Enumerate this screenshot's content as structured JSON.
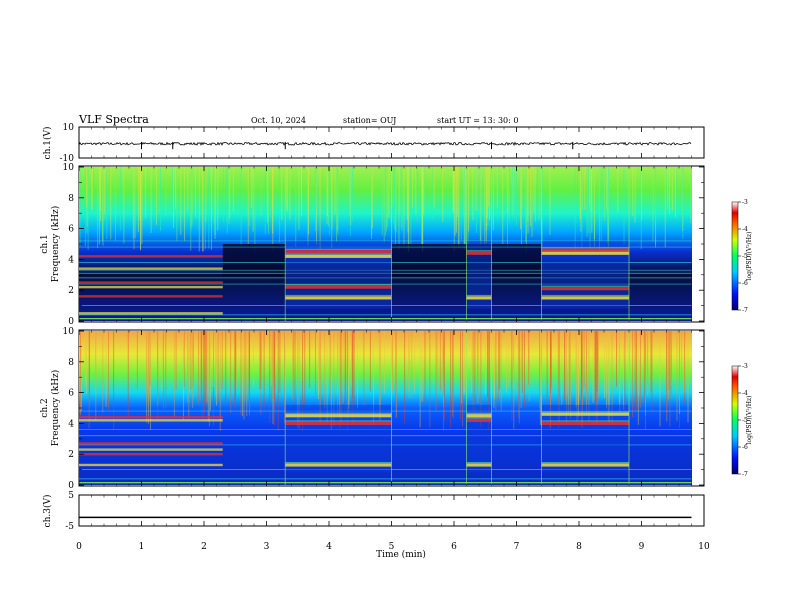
{
  "header": {
    "title": "VLF Spectra",
    "date": "Oct. 10, 2024",
    "station": "station= OUJ",
    "start": "start  UT  =  13: 30: 0"
  },
  "chart_data": [
    {
      "type": "line",
      "name": "ch1-waveform",
      "ylabel": "ch.1(V)",
      "ylim": [
        -10,
        10
      ],
      "yticks": [
        "10",
        "-10"
      ],
      "x": [
        0,
        9.8
      ],
      "baseline": -0.8,
      "spike_times": [
        1.0,
        1.5,
        3.3,
        6.6,
        7.9
      ],
      "xlim": [
        0,
        10
      ]
    },
    {
      "type": "heatmap",
      "name": "ch1-spectrogram",
      "ylabel_top": "ch.1",
      "ylabel": "Frequency (kHz)",
      "ylim": [
        0,
        10
      ],
      "yticks": [
        "0",
        "2",
        "4",
        "6",
        "8",
        "10"
      ],
      "xlim": [
        0,
        9.8
      ],
      "colorbar": {
        "label": "log(PSD)(V²/Hz)",
        "ticks": [
          "-3",
          "-4",
          "-5",
          "-6",
          "-7"
        ],
        "range": [
          -7,
          -3
        ]
      },
      "bursts": [
        {
          "t0": 3.3,
          "t1": 5.0,
          "bands": [
            1.5,
            2.2,
            4.2,
            4.5
          ]
        },
        {
          "t0": 6.2,
          "t1": 6.6,
          "bands": [
            1.5,
            4.4
          ]
        },
        {
          "t0": 7.4,
          "t1": 8.8,
          "bands": [
            1.5,
            2.1,
            4.4,
            4.6
          ]
        }
      ],
      "early_bands": {
        "t0": 0.0,
        "t1": 2.3,
        "bands": [
          0.5,
          1.6,
          2.2,
          2.5,
          3.4,
          4.2
        ]
      },
      "lines_khz": [
        0.4,
        1.0,
        2.4,
        2.8,
        3.1,
        3.3,
        3.8,
        4.8,
        5.2
      ]
    },
    {
      "type": "heatmap",
      "name": "ch2-spectrogram",
      "ylabel_top": "ch.2",
      "ylabel": "Frequency (kHz)",
      "ylim": [
        0,
        10
      ],
      "yticks": [
        "0",
        "2",
        "4",
        "6",
        "8",
        "10"
      ],
      "xlim": [
        0,
        9.8
      ],
      "colorbar": {
        "label": "log(PSD)(V²/Hz)",
        "ticks": [
          "-3",
          "-4",
          "-5",
          "-6",
          "-7"
        ],
        "range": [
          -7,
          -3
        ]
      },
      "bursts": [
        {
          "t0": 3.3,
          "t1": 5.0,
          "bands": [
            1.3,
            4.0,
            4.5
          ]
        },
        {
          "t0": 6.2,
          "t1": 6.6,
          "bands": [
            1.3,
            4.2,
            4.5
          ]
        },
        {
          "t0": 7.4,
          "t1": 8.8,
          "bands": [
            1.3,
            4.0,
            4.6
          ]
        }
      ],
      "early_bands": {
        "t0": 0.0,
        "t1": 2.3,
        "bands": [
          1.3,
          2.0,
          2.3,
          2.7,
          4.2,
          4.4
        ]
      },
      "lines_khz": [
        0.4,
        1.0,
        2.6,
        3.2,
        3.6,
        4.8
      ]
    },
    {
      "type": "line",
      "name": "ch3-waveform",
      "ylabel": "ch.3(V)",
      "ylim": [
        -5,
        5
      ],
      "yticks": [
        "5",
        "-5"
      ],
      "x": [
        0,
        9.8
      ],
      "y": [
        -2.2,
        -2.2
      ],
      "xlim": [
        0,
        10
      ]
    }
  ],
  "xaxis": {
    "label": "Time  (min)",
    "ticks": [
      "0",
      "1",
      "2",
      "3",
      "4",
      "5",
      "6",
      "7",
      "8",
      "9",
      "10"
    ]
  }
}
